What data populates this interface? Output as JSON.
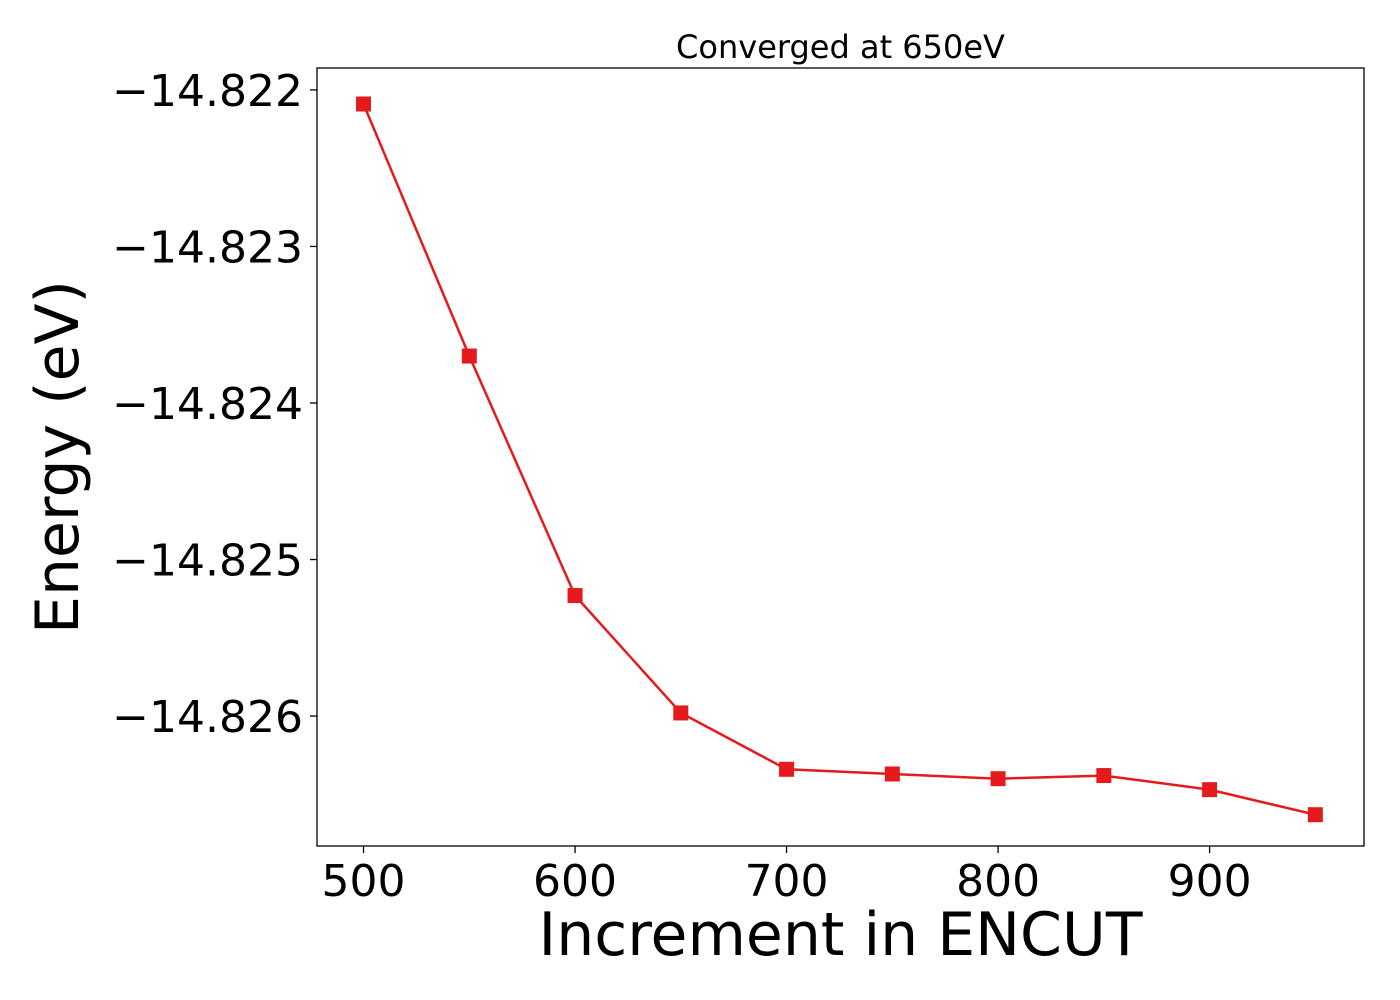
{
  "chart_data": {
    "type": "line",
    "title": "Converged at 650eV",
    "xlabel": "Increment in ENCUT",
    "ylabel": "Energy (eV)",
    "x": [
      500,
      550,
      600,
      650,
      700,
      750,
      800,
      850,
      900,
      950
    ],
    "series": [
      {
        "values": [
          -14.82209,
          -14.8237,
          -14.82523,
          -14.82598,
          -14.82634,
          -14.82637,
          -14.8264,
          -14.82638,
          -14.82647,
          -14.82663
        ],
        "color": "#e41a1c",
        "marker": "square"
      }
    ],
    "xlim": [
      478,
      973
    ],
    "ylim": [
      -14.82683,
      -14.82186
    ],
    "xticks": [
      500,
      600,
      700,
      800,
      900
    ],
    "xtick_labels": [
      "500",
      "600",
      "700",
      "800",
      "900"
    ],
    "yticks": [
      -14.822,
      -14.823,
      -14.824,
      -14.825,
      -14.826
    ],
    "ytick_labels": [
      "−14.822",
      "−14.823",
      "−14.824",
      "−14.825",
      "−14.826"
    ],
    "grid": false,
    "legend": "none"
  }
}
